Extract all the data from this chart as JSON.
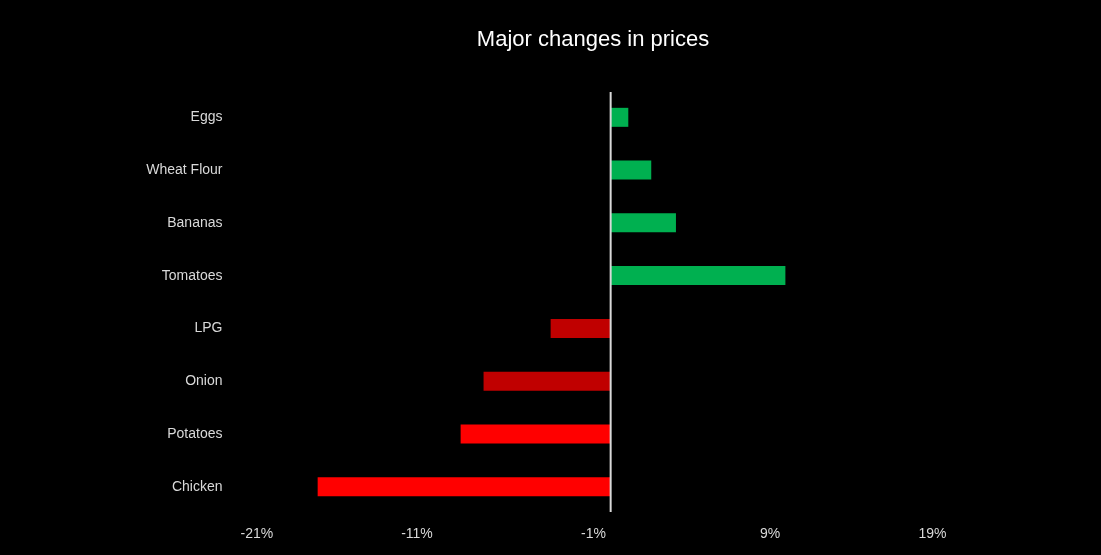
{
  "chart_data": {
    "type": "bar",
    "orientation": "horizontal",
    "title": "Major changes in prices",
    "categories": [
      "Eggs",
      "Wheat Flour ",
      "Bananas",
      "Tomatoes",
      "LPG",
      "Onion",
      "Potatoes",
      "Chicken"
    ],
    "values": [
      1.0,
      2.3,
      3.7,
      9.9,
      -3.4,
      -7.2,
      -8.5,
      -16.6
    ],
    "colors": [
      "#00b050",
      "#00b050",
      "#00b050",
      "#00b050",
      "#c00000",
      "#c00000",
      "#ff0000",
      "#ff0000"
    ],
    "xlim": [
      -21,
      19
    ],
    "xticks": [
      {
        "value": -21,
        "label": "-21%"
      },
      {
        "value": -11,
        "label": "-11%"
      },
      {
        "value": -1,
        "label": "-1%"
      },
      {
        "value": 9,
        "label": "9%"
      },
      {
        "value": 19,
        "label": "19%"
      }
    ],
    "ref_lines": [
      {
        "axis": "x",
        "value": 0,
        "color": "#d9d9d9"
      }
    ],
    "grid": false
  }
}
